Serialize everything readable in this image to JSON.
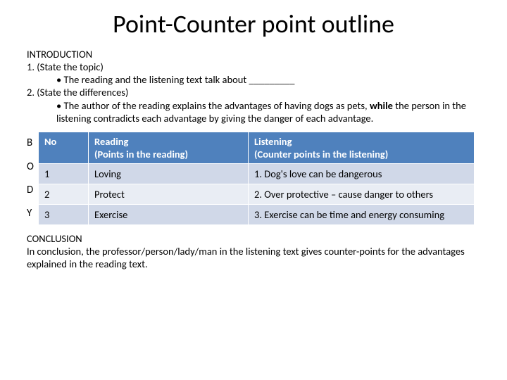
{
  "title": "Point-Counter point outline",
  "intro": {
    "heading": "INTRODUCTION",
    "item1_num": "1.   (State the topic)",
    "item1_bullet": "•      The reading and the listening text talk about _________",
    "item2_num": "2.   (State the differences)",
    "item2_bullet_pre": "•      The author of the reading explains the advantages of having dogs as pets, ",
    "item2_bold": "while",
    "item2_bullet_post": " the person in the listening contradicts each advantage by giving the danger of each advantage."
  },
  "letters": [
    "B",
    "O",
    "D",
    "Y"
  ],
  "table": {
    "header_bg": "#4f81bd",
    "header_fg": "#ffffff",
    "row_light_bg": "#d0d8e8",
    "row_dark_bg": "#e9edf4",
    "columns": {
      "no": "No",
      "reading_line1": "Reading",
      "reading_line2": "(Points in the reading)",
      "listening_line1": "Listening",
      "listening_line2": "(Counter points in the listening)"
    },
    "rows": [
      {
        "no": "1",
        "reading": "Loving",
        "listening": "1. Dog's love can be dangerous"
      },
      {
        "no": "2",
        "reading": "Protect",
        "listening": "2. Over protective – cause danger to others"
      },
      {
        "no": "3",
        "reading": "Exercise",
        "listening": "3.  Exercise can be time and energy consuming"
      }
    ]
  },
  "conclusion": {
    "heading": "CONCLUSION",
    "text": "In conclusion, the professor/person/lady/man in the listening text gives counter-points for the advantages explained in the reading text."
  }
}
